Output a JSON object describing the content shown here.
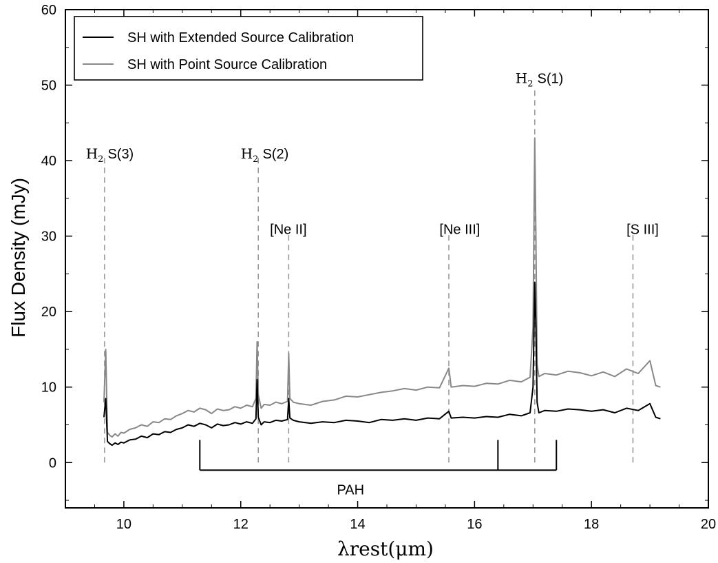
{
  "chart_data": {
    "type": "line",
    "xlabel": "λrest(μm)",
    "ylabel": "Flux Density (mJy)",
    "xlim": [
      9,
      20
    ],
    "ylim": [
      -6,
      60
    ],
    "x_ticks": [
      10,
      12,
      14,
      16,
      18,
      20
    ],
    "y_ticks": [
      0,
      10,
      20,
      30,
      40,
      50,
      60
    ],
    "x_tick_labels": [
      "10",
      "12",
      "14",
      "16",
      "18",
      "20"
    ],
    "y_tick_labels": [
      "0",
      "10",
      "20",
      "30",
      "40",
      "50",
      "60"
    ],
    "grid": false,
    "legend_position": "top-left",
    "series": [
      {
        "name": "SH with Extended Source Calibration",
        "color": "#000000",
        "x": [
          9.66,
          9.69,
          9.72,
          9.76,
          9.8,
          9.85,
          9.9,
          9.95,
          10.0,
          10.1,
          10.2,
          10.3,
          10.4,
          10.5,
          10.6,
          10.7,
          10.8,
          10.9,
          11.0,
          11.1,
          11.2,
          11.3,
          11.4,
          11.5,
          11.6,
          11.7,
          11.8,
          11.9,
          12.0,
          12.1,
          12.2,
          12.26,
          12.28,
          12.3,
          12.35,
          12.4,
          12.5,
          12.6,
          12.7,
          12.8,
          12.82,
          12.84,
          12.9,
          13.0,
          13.2,
          13.4,
          13.6,
          13.8,
          14.0,
          14.2,
          14.4,
          14.6,
          14.8,
          15.0,
          15.2,
          15.4,
          15.56,
          15.6,
          15.8,
          16.0,
          16.2,
          16.4,
          16.6,
          16.8,
          16.95,
          17.0,
          17.03,
          17.05,
          17.07,
          17.1,
          17.2,
          17.4,
          17.6,
          17.8,
          18.0,
          18.2,
          18.4,
          18.6,
          18.8,
          19.0,
          19.1,
          19.18
        ],
        "y": [
          6.0,
          8.5,
          2.8,
          2.5,
          2.3,
          2.6,
          2.4,
          2.7,
          2.6,
          3.0,
          3.1,
          3.5,
          3.3,
          3.8,
          3.7,
          4.1,
          4.0,
          4.4,
          4.6,
          5.0,
          4.8,
          5.2,
          5.0,
          4.6,
          5.1,
          4.9,
          5.0,
          5.3,
          5.1,
          5.4,
          5.2,
          5.8,
          11.0,
          6.0,
          5.0,
          5.4,
          5.3,
          5.6,
          5.5,
          5.7,
          8.5,
          5.9,
          5.6,
          5.4,
          5.2,
          5.4,
          5.3,
          5.6,
          5.5,
          5.3,
          5.7,
          5.6,
          5.8,
          5.6,
          5.9,
          5.8,
          6.8,
          5.9,
          6.0,
          5.9,
          6.1,
          6.0,
          6.4,
          6.2,
          6.6,
          10.0,
          23.9,
          18.0,
          8.0,
          6.6,
          6.9,
          6.8,
          7.1,
          7.0,
          6.8,
          7.0,
          6.6,
          7.2,
          6.9,
          7.8,
          6.0,
          5.8
        ]
      },
      {
        "name": "SH with Point Source Calibration",
        "color": "#888888",
        "x": [
          9.66,
          9.69,
          9.72,
          9.76,
          9.8,
          9.85,
          9.9,
          9.95,
          10.0,
          10.1,
          10.2,
          10.3,
          10.4,
          10.5,
          10.6,
          10.7,
          10.8,
          10.9,
          11.0,
          11.1,
          11.2,
          11.3,
          11.4,
          11.5,
          11.6,
          11.7,
          11.8,
          11.9,
          12.0,
          12.1,
          12.2,
          12.26,
          12.28,
          12.3,
          12.35,
          12.4,
          12.5,
          12.6,
          12.7,
          12.8,
          12.82,
          12.84,
          12.9,
          13.0,
          13.2,
          13.4,
          13.6,
          13.8,
          14.0,
          14.2,
          14.4,
          14.6,
          14.8,
          15.0,
          15.2,
          15.4,
          15.56,
          15.6,
          15.8,
          16.0,
          16.2,
          16.4,
          16.6,
          16.8,
          16.95,
          17.0,
          17.03,
          17.05,
          17.07,
          17.1,
          17.2,
          17.4,
          17.6,
          17.8,
          18.0,
          18.2,
          18.4,
          18.6,
          18.8,
          19.0,
          19.1,
          19.18
        ],
        "y": [
          8.0,
          15.0,
          4.0,
          3.6,
          3.4,
          3.8,
          3.5,
          4.0,
          3.9,
          4.4,
          4.6,
          5.0,
          4.8,
          5.4,
          5.3,
          5.8,
          5.7,
          6.2,
          6.5,
          6.9,
          6.7,
          7.2,
          7.0,
          6.5,
          7.1,
          6.9,
          7.0,
          7.4,
          7.2,
          7.6,
          7.4,
          8.5,
          16.0,
          9.0,
          7.2,
          7.7,
          7.6,
          8.0,
          7.8,
          8.1,
          14.5,
          8.5,
          8.0,
          7.8,
          7.6,
          8.1,
          8.3,
          8.8,
          8.7,
          9.0,
          9.3,
          9.5,
          9.8,
          9.6,
          10.0,
          9.9,
          12.5,
          10.0,
          10.2,
          10.1,
          10.5,
          10.4,
          10.9,
          10.7,
          11.3,
          18.0,
          43.0,
          30.0,
          13.0,
          11.4,
          11.8,
          11.6,
          12.1,
          11.9,
          11.5,
          12.0,
          11.4,
          12.4,
          11.8,
          13.5,
          10.2,
          10.0
        ]
      }
    ],
    "line_markers": [
      {
        "label_prefix": "H2",
        "label": "S(3)",
        "x": 9.67,
        "label_x": 9.35,
        "top": 40.5,
        "label_y": 40.3
      },
      {
        "label_prefix": "H2",
        "label": "S(2)",
        "x": 12.3,
        "label_x": 12.0,
        "top": 40.5,
        "label_y": 40.3
      },
      {
        "label_prefix": "",
        "label": "[Ne II]",
        "x": 12.82,
        "label_x": 12.5,
        "top": 30.5,
        "label_y": 30.3
      },
      {
        "label_prefix": "",
        "label": "[Ne III]",
        "x": 15.56,
        "label_x": 15.4,
        "top": 30.5,
        "label_y": 30.3
      },
      {
        "label_prefix": "H2",
        "label": "S(1)",
        "x": 17.03,
        "label_x": 16.7,
        "top": 49.5,
        "label_y": 50.3
      },
      {
        "label_prefix": "",
        "label": "[S III]",
        "x": 18.71,
        "label_x": 18.6,
        "top": 30.5,
        "label_y": 30.3
      }
    ],
    "pah": {
      "label": "PAH",
      "features": [
        11.3,
        16.4,
        17.4
      ],
      "bar_y": -1.0,
      "tick_top": 3.0,
      "label_y": -4.2
    }
  }
}
